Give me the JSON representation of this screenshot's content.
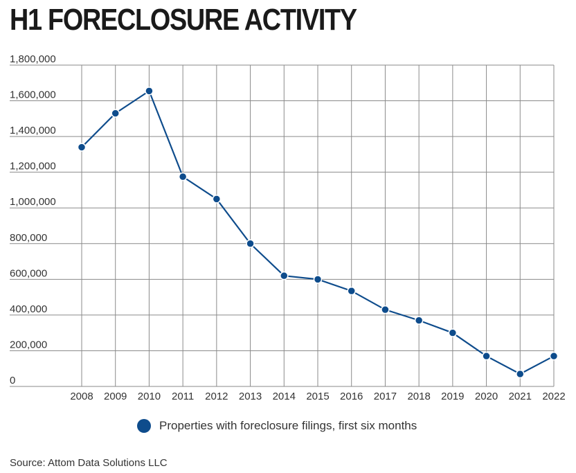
{
  "title": "H1 FORECLOSURE ACTIVITY",
  "source": "Source: Attom Data Solutions LLC",
  "legend": {
    "label": "Properties with foreclosure filings, first six months"
  },
  "colors": {
    "line": "#0e4c8c",
    "grid": "#8a8a8a",
    "text": "#333333"
  },
  "chart_data": {
    "type": "line",
    "title": "H1 FORECLOSURE ACTIVITY",
    "xlabel": "",
    "ylabel": "",
    "categories": [
      "2008",
      "2009",
      "2010",
      "2011",
      "2012",
      "2013",
      "2014",
      "2015",
      "2016",
      "2017",
      "2018",
      "2019",
      "2020",
      "2021",
      "2022"
    ],
    "series": [
      {
        "name": "Properties with foreclosure filings, first six months",
        "values": [
          1340000,
          1530000,
          1655000,
          1175000,
          1050000,
          800000,
          620000,
          600000,
          535000,
          430000,
          370000,
          300000,
          170000,
          70000,
          170000
        ]
      }
    ],
    "yticks": [
      0,
      200000,
      400000,
      600000,
      800000,
      1000000,
      1200000,
      1400000,
      1600000,
      1800000
    ],
    "ytick_labels": [
      "0",
      "200,000",
      "400,000",
      "600,000",
      "800,000",
      "1,000,000",
      "1,200,000",
      "1,400,000",
      "1,600,000",
      "1,800,000"
    ],
    "ylim": [
      0,
      1800000
    ],
    "grid": true,
    "legend_position": "bottom-center"
  }
}
